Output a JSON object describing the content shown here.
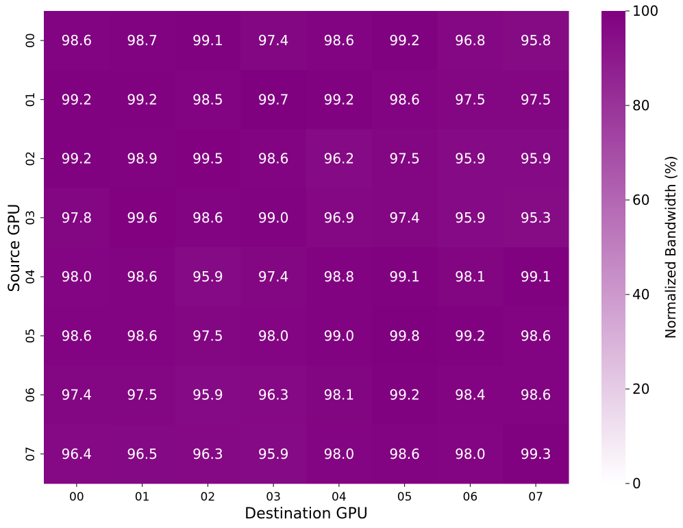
{
  "chart_data": {
    "type": "heatmap",
    "xlabel": "Destination GPU",
    "ylabel": "Source GPU",
    "x_categories": [
      "00",
      "01",
      "02",
      "03",
      "04",
      "05",
      "06",
      "07"
    ],
    "y_categories": [
      "00",
      "01",
      "02",
      "03",
      "04",
      "05",
      "06",
      "07"
    ],
    "values": [
      [
        98.6,
        98.7,
        99.1,
        97.4,
        98.6,
        99.2,
        96.8,
        95.8
      ],
      [
        99.2,
        99.2,
        98.5,
        99.7,
        99.2,
        98.6,
        97.5,
        97.5
      ],
      [
        99.2,
        98.9,
        99.5,
        98.6,
        96.2,
        97.5,
        95.9,
        95.9
      ],
      [
        97.8,
        99.6,
        98.6,
        99.0,
        96.9,
        97.4,
        95.9,
        95.3
      ],
      [
        98.0,
        98.6,
        95.9,
        97.4,
        98.8,
        99.1,
        98.1,
        99.1
      ],
      [
        98.6,
        98.6,
        97.5,
        98.0,
        99.0,
        99.8,
        99.2,
        98.6
      ],
      [
        97.4,
        97.5,
        95.9,
        96.3,
        98.1,
        99.2,
        98.4,
        98.6
      ],
      [
        96.4,
        96.5,
        96.3,
        95.9,
        98.0,
        98.6,
        98.0,
        99.3
      ]
    ],
    "colorbar": {
      "label": "Normalized Bandwidth (%)",
      "range": [
        0,
        100
      ],
      "ticks": [
        "0",
        "20",
        "40",
        "60",
        "80",
        "100"
      ],
      "color_low": "#ffffff",
      "color_high": "#800080"
    },
    "grid": false
  }
}
